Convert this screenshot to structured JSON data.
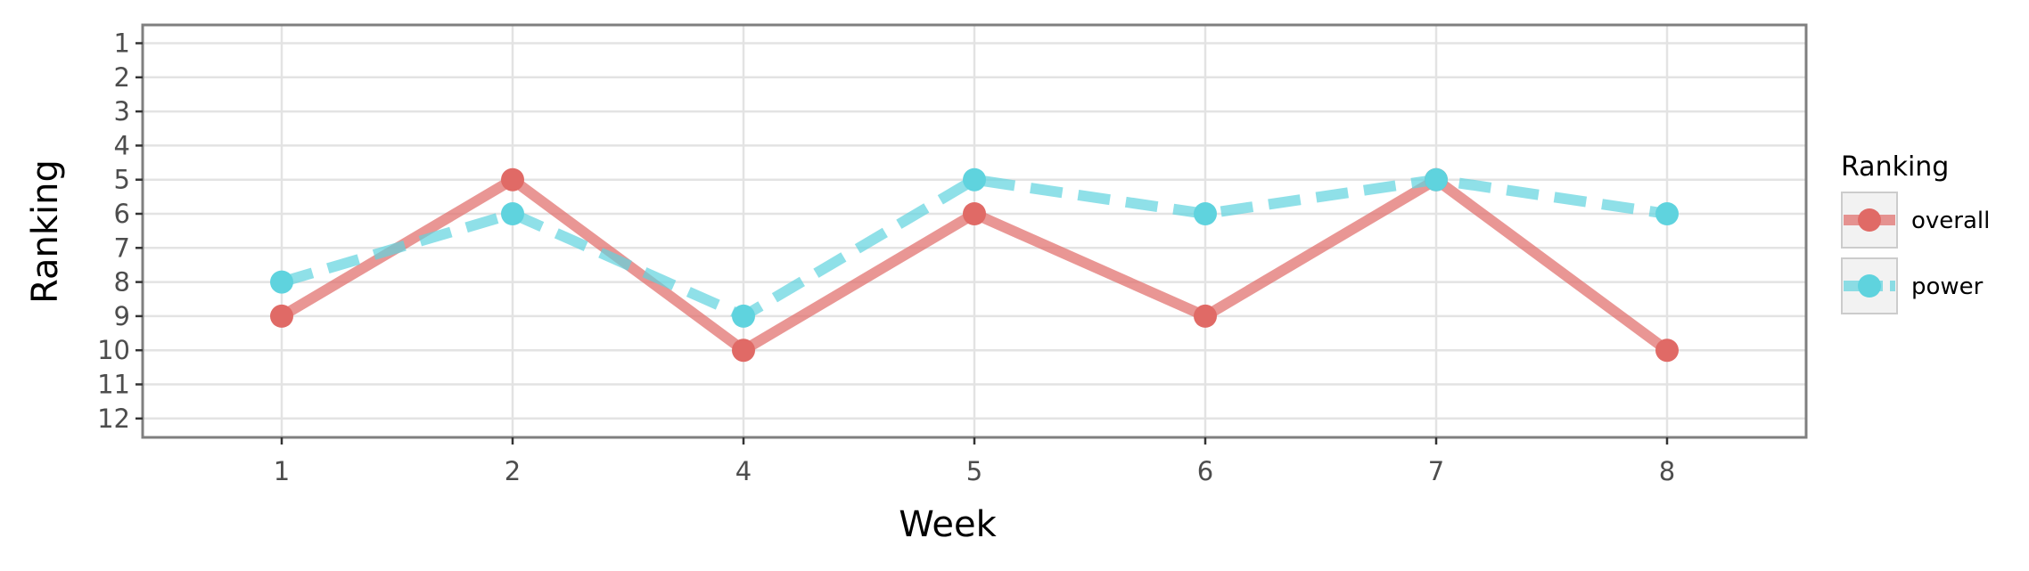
{
  "chart_data": {
    "type": "line",
    "x": [
      "1",
      "2",
      "4",
      "5",
      "6",
      "7",
      "8"
    ],
    "xlabel": "Week",
    "ylabel": "Ranking",
    "yticks": [
      "1",
      "2",
      "3",
      "4",
      "5",
      "6",
      "7",
      "8",
      "9",
      "10",
      "11",
      "12"
    ],
    "ylim": [
      12,
      1
    ],
    "y_reversed": true,
    "grid": true,
    "legend": {
      "title": "Ranking",
      "position": "right"
    },
    "series": [
      {
        "name": "overall",
        "values": [
          9,
          5,
          10,
          6,
          9,
          5,
          10
        ],
        "color": "#e06a66",
        "line_style": "solid"
      },
      {
        "name": "power",
        "values": [
          8,
          6,
          9,
          5,
          6,
          5,
          6
        ],
        "color": "#5fd3de",
        "line_style": "dashed"
      }
    ]
  }
}
